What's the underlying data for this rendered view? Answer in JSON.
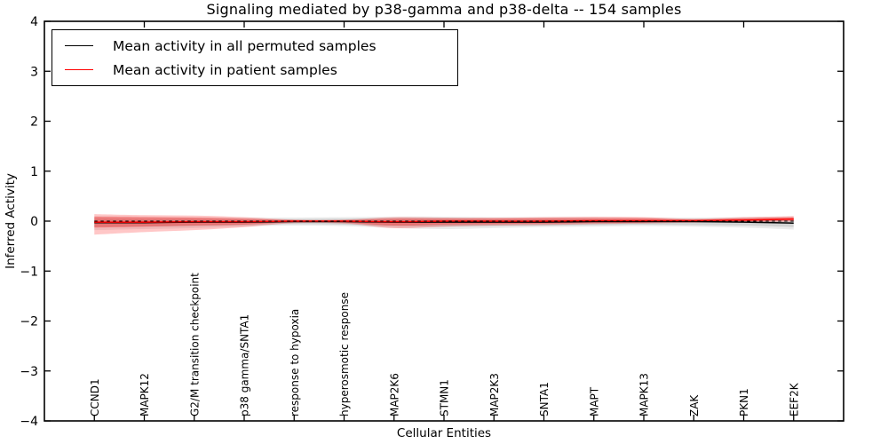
{
  "title": "Signaling mediated by p38-gamma and p38-delta -- 154 samples",
  "legend": {
    "items": [
      {
        "label": "Mean activity in all permuted samples",
        "color": "#000000"
      },
      {
        "label": "Mean activity in patient samples",
        "color": "#ff0000"
      }
    ]
  },
  "chart_data": {
    "type": "line",
    "title": "Signaling mediated by p38-gamma and p38-delta -- 154 samples",
    "xlabel": "Cellular Entities",
    "ylabel": "Inferred Activity",
    "ylim": [
      -4,
      4
    ],
    "grid": false,
    "legend_position": "upper left",
    "ytick_values": [
      4,
      3,
      2,
      1,
      0,
      -1,
      -2,
      -3,
      -4
    ],
    "ytick_labels": [
      "4",
      "3",
      "2",
      "1",
      "0",
      "−1",
      "−2",
      "−3",
      "−4"
    ],
    "categories": [
      "CCND1",
      "MAPK12",
      "G2/M transition checkpoint",
      "p38 gamma/SNTA1",
      "response to hypoxia",
      "hyperosmotic response",
      "MAP2K6",
      "STMN1",
      "MAP2K3",
      "SNTA1",
      "MAPT",
      "MAPK13",
      "ZAK",
      "PKN1",
      "EEF2K"
    ],
    "top_tick_indices": [
      1,
      3,
      5,
      7,
      9,
      11,
      13
    ],
    "reference_line": {
      "value": 0,
      "style": "dashed",
      "color": "#000000"
    },
    "series": [
      {
        "name": "Mean activity in all permuted samples",
        "color": "#000000",
        "band_alpha_outer": 0.08,
        "band_alpha_inner": 0.11,
        "values": [
          -0.03,
          -0.03,
          -0.02,
          -0.02,
          -0.01,
          -0.01,
          -0.02,
          -0.02,
          -0.02,
          -0.02,
          -0.01,
          -0.01,
          -0.01,
          -0.02,
          -0.04
        ],
        "band_outer": {
          "upper": [
            0.1,
            0.09,
            0.08,
            0.07,
            0.07,
            0.08,
            0.09,
            0.09,
            0.08,
            0.08,
            0.08,
            0.07,
            0.07,
            0.08,
            0.09
          ],
          "lower": [
            -0.18,
            -0.16,
            -0.14,
            -0.11,
            -0.09,
            -0.1,
            -0.14,
            -0.16,
            -0.14,
            -0.12,
            -0.11,
            -0.1,
            -0.11,
            -0.13,
            -0.17
          ]
        },
        "band_inner": {
          "upper": [
            0.06,
            0.05,
            0.05,
            0.04,
            0.04,
            0.05,
            0.06,
            0.06,
            0.05,
            0.05,
            0.05,
            0.04,
            0.04,
            0.05,
            0.05
          ],
          "lower": [
            -0.12,
            -0.11,
            -0.1,
            -0.08,
            -0.06,
            -0.07,
            -0.1,
            -0.11,
            -0.1,
            -0.09,
            -0.08,
            -0.07,
            -0.08,
            -0.09,
            -0.12
          ]
        }
      },
      {
        "name": "Mean activity in patient samples",
        "color": "#ff0000",
        "band_alpha_outer": 0.22,
        "band_alpha_inner": 0.28,
        "values": [
          -0.02,
          -0.02,
          -0.01,
          -0.01,
          0.0,
          0.0,
          -0.01,
          0.0,
          0.0,
          0.0,
          0.01,
          0.01,
          0.01,
          0.02,
          0.04
        ],
        "band_outer": {
          "upper": [
            0.14,
            0.12,
            0.11,
            0.08,
            0.03,
            0.03,
            0.08,
            0.07,
            0.07,
            0.08,
            0.09,
            0.08,
            0.05,
            0.08,
            0.1
          ],
          "lower": [
            -0.27,
            -0.22,
            -0.18,
            -0.12,
            -0.04,
            -0.05,
            -0.14,
            -0.11,
            -0.09,
            -0.08,
            -0.06,
            -0.05,
            -0.03,
            -0.02,
            -0.01
          ]
        },
        "band_inner": {
          "upper": [
            0.09,
            0.08,
            0.07,
            0.05,
            0.02,
            0.02,
            0.05,
            0.05,
            0.05,
            0.06,
            0.06,
            0.06,
            0.03,
            0.06,
            0.08
          ],
          "lower": [
            -0.13,
            -0.11,
            -0.09,
            -0.07,
            -0.02,
            -0.03,
            -0.09,
            -0.07,
            -0.06,
            -0.05,
            -0.04,
            -0.03,
            -0.01,
            0.0,
            0.01
          ]
        }
      }
    ]
  }
}
